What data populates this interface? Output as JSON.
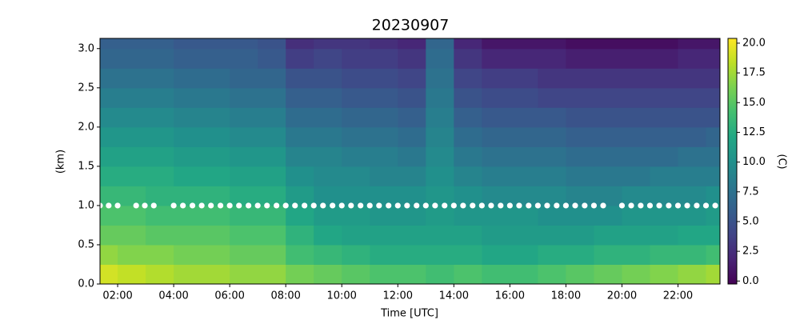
{
  "chart_data": {
    "type": "heatmap",
    "title": "20230907",
    "xlabel": "Time [UTC]",
    "ylabel": "(km)",
    "colorbar_label": "(C)",
    "cmap": "viridis",
    "x_bins": [
      1.37,
      2,
      3,
      4,
      5,
      6,
      7,
      8,
      9,
      10,
      11,
      12,
      13,
      14,
      15,
      16,
      17,
      18,
      19,
      20,
      21,
      22,
      23,
      23.5
    ],
    "y_bins": [
      0,
      0.25,
      0.5,
      0.75,
      1.0,
      1.25,
      1.5,
      1.75,
      2.0,
      2.25,
      2.5,
      2.75,
      3.0,
      3.25
    ],
    "values": [
      [
        19,
        18.5,
        18,
        17.5,
        17.5,
        17,
        17,
        16,
        15.5,
        15,
        14.5,
        14.5,
        14,
        14.5,
        14,
        14,
        14.5,
        15,
        15.5,
        16,
        16.5,
        17,
        17.5
      ],
      [
        17,
        16.5,
        16.5,
        16,
        16,
        15.5,
        15.5,
        14,
        13.5,
        13,
        12.5,
        12.5,
        12.5,
        12.5,
        12,
        12,
        12.5,
        12.5,
        13,
        13,
        13.5,
        13.5,
        14
      ],
      [
        15.5,
        15.5,
        15,
        15,
        15,
        14.5,
        14.5,
        13,
        12,
        11.5,
        11.5,
        11.5,
        11.5,
        11.5,
        11,
        11,
        11,
        11,
        11.5,
        11.5,
        11.5,
        12,
        12
      ],
      [
        14.5,
        14.5,
        14,
        14,
        14,
        13.5,
        13.5,
        12,
        11,
        11,
        10.5,
        10.5,
        11,
        10.5,
        10.5,
        10.5,
        10,
        10,
        10,
        10.5,
        10.5,
        10.5,
        11
      ],
      [
        13.5,
        13.5,
        13,
        13,
        13,
        12.5,
        12.5,
        11,
        10,
        10,
        10,
        10,
        10.5,
        10,
        9.5,
        9.5,
        9.5,
        9,
        9,
        9.5,
        9.5,
        9.5,
        10
      ],
      [
        12.5,
        12.5,
        12.5,
        12,
        12,
        11.5,
        11.5,
        10,
        9.5,
        9.5,
        9,
        9,
        10,
        9,
        8.5,
        8.5,
        8.5,
        8,
        8,
        8,
        8.5,
        8.5,
        8.5
      ],
      [
        11.5,
        11.5,
        11.5,
        11,
        11,
        10.5,
        10.5,
        9,
        9,
        8.5,
        8.5,
        8,
        9.5,
        8,
        7.5,
        7.5,
        7.5,
        7,
        7,
        7,
        7,
        7.5,
        7.5
      ],
      [
        10.5,
        10.5,
        10.5,
        10,
        10,
        9.5,
        9.5,
        8,
        8,
        7.5,
        7.5,
        7,
        9,
        7,
        6.5,
        6.5,
        6.5,
        6,
        6,
        6,
        6,
        6,
        6.5
      ],
      [
        9.5,
        9.5,
        9.5,
        9,
        9,
        8.5,
        8.5,
        7,
        7,
        6.5,
        6.5,
        6,
        8.5,
        6,
        5.5,
        5.5,
        5.5,
        5,
        5,
        5,
        5,
        5,
        5
      ],
      [
        8.5,
        8.5,
        8.5,
        8,
        8,
        7.5,
        7.5,
        6,
        6,
        5.5,
        5.5,
        5,
        8,
        5,
        4.5,
        4.5,
        4,
        4,
        4,
        4,
        4,
        4,
        4
      ],
      [
        7.5,
        7.5,
        7.5,
        7,
        7,
        6.5,
        6.5,
        5,
        5,
        4.5,
        4.5,
        4,
        7.5,
        4,
        3.5,
        3.5,
        3,
        3,
        3,
        3,
        3,
        3,
        3
      ],
      [
        6.5,
        6.5,
        6.5,
        6,
        6,
        6,
        5.5,
        3.5,
        4,
        3.5,
        3.5,
        3,
        7,
        3,
        2,
        2,
        2,
        1.5,
        1.5,
        1.5,
        1.5,
        2,
        2
      ],
      [
        6,
        6,
        6,
        5.5,
        5.5,
        5.5,
        5,
        2.5,
        3,
        3,
        2.5,
        2,
        6.5,
        2,
        1,
        1,
        1,
        0.5,
        0.5,
        0.5,
        0.5,
        1,
        1
      ]
    ],
    "markers": {
      "color": "#ffffff",
      "x": [
        1.37,
        1.68,
        2.0,
        2.66,
        2.97,
        3.29,
        4.0,
        4.33,
        4.67,
        5.0,
        5.33,
        5.67,
        6.0,
        6.33,
        6.67,
        7.0,
        7.33,
        7.67,
        8.0,
        8.33,
        8.67,
        9.0,
        9.33,
        9.67,
        10.0,
        10.33,
        10.67,
        11.0,
        11.33,
        11.67,
        12.0,
        12.33,
        12.67,
        13.0,
        13.33,
        13.67,
        14.0,
        14.33,
        14.67,
        15.0,
        15.33,
        15.67,
        16.0,
        16.33,
        16.67,
        17.0,
        17.33,
        17.67,
        18.0,
        18.33,
        18.67,
        19.0,
        19.33,
        20.0,
        20.33,
        20.67,
        21.0,
        21.33,
        21.67,
        22.0,
        22.33,
        22.67,
        23.0,
        23.33
      ],
      "y": [
        1.0,
        1.0,
        1.0,
        1.0,
        1.0,
        1.0,
        1.0,
        1.0,
        1.0,
        1.0,
        1.0,
        1.0,
        1.0,
        1.0,
        1.0,
        1.0,
        1.0,
        1.0,
        1.0,
        1.0,
        1.0,
        1.0,
        1.0,
        1.0,
        1.0,
        1.0,
        1.0,
        1.0,
        1.0,
        1.0,
        1.0,
        1.0,
        1.0,
        1.0,
        1.0,
        1.0,
        1.0,
        1.0,
        1.0,
        1.0,
        1.0,
        1.0,
        1.0,
        1.0,
        1.0,
        1.0,
        1.0,
        1.0,
        1.0,
        1.0,
        1.0,
        1.0,
        1.0,
        1.0,
        1.0,
        1.0,
        1.0,
        1.0,
        1.0,
        1.0,
        1.0,
        1.0,
        1.0,
        1.0
      ]
    },
    "xlim": [
      1.37,
      23.5
    ],
    "ylim": [
      0,
      3.13
    ],
    "clim": [
      -0.25,
      20.4
    ],
    "xticks": [
      {
        "value": 2,
        "label": "02:00"
      },
      {
        "value": 4,
        "label": "04:00"
      },
      {
        "value": 6,
        "label": "06:00"
      },
      {
        "value": 8,
        "label": "08:00"
      },
      {
        "value": 10,
        "label": "10:00"
      },
      {
        "value": 12,
        "label": "12:00"
      },
      {
        "value": 14,
        "label": "14:00"
      },
      {
        "value": 16,
        "label": "16:00"
      },
      {
        "value": 18,
        "label": "18:00"
      },
      {
        "value": 20,
        "label": "20:00"
      },
      {
        "value": 22,
        "label": "22:00"
      }
    ],
    "yticks": [
      {
        "value": 0,
        "label": "0.0"
      },
      0.5,
      {
        "value": 1,
        "label": "1.0"
      },
      1.5,
      {
        "value": 2,
        "label": "2.0"
      },
      2.5,
      {
        "value": 3,
        "label": "3.0"
      }
    ],
    "cticks": [
      {
        "value": 0,
        "label": "0.0"
      },
      2.5,
      {
        "value": 5,
        "label": "5.0"
      },
      7.5,
      {
        "value": 10,
        "label": "10.0"
      },
      12.5,
      {
        "value": 15,
        "label": "15.0"
      },
      17.5,
      {
        "value": 20,
        "label": "20.0"
      }
    ]
  }
}
